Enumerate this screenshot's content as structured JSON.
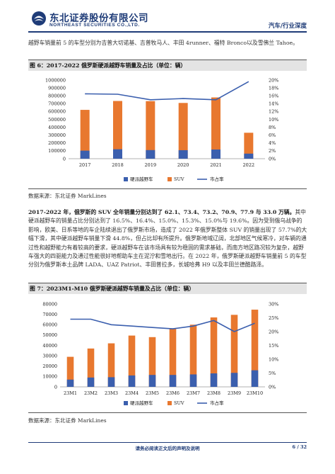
{
  "header": {
    "brand_cn": "东北证券股份有限公司",
    "brand_en": "NORTHEAST SECURITIES CO.,LTD.",
    "report_type": "汽车/行业深度",
    "logo_icon": "northeast-securities-logo-icon",
    "brand_color": "#1f3c78"
  },
  "intro": {
    "text": "越野车销量前 5 的车型分别为吉普大切诺基、吉普牧马人、丰田 4runner、福特 Bronco以及雪佛兰 Tahoe。"
  },
  "figure6": {
    "title": "图 6：2017-2022 俄罗斯硬派越野车销量及占比（单位：辆）",
    "source": "数据来源：东北证券 MarkLines"
  },
  "body": {
    "lead": "2017-2022 年，俄罗斯的 SUV 全年销量分别达到了 62.1、73.4、73.2、70.9、77.9 与 33.0 万辆。",
    "text": "其中硬派越野车的销量占比分别达到了 16.5%、16.4%、15.0%、15.3%、15.0%与 19.6%。因为受到俄乌战争的影响，欧美、日系等地的车企陆续退出了俄罗斯市场，造成了 2022 年俄罗斯整体 SUV 的销量出现了 57.7%的大幅下滑，其中硬派越野车销量下滑 44.8%，但占比却有所提升。俄罗斯地域辽阔，北部地区气候寒冷，对车辆的通过性和越野能力有着较高的要求，硬派越野车在该市场具有较为稳固的需求基础，而南方地区路况较为复杂，越野车强大的四驱能力及通过性能很好地帮助车主在泥泞和雪地出行。在 2022 年，俄罗斯硬派越野车销量前 5 的车型分别为俄罗斯本土品牌 LADA、UAZ Patriot、丰田普拉多，长城哈弗 H9 以及丰田兰德酷路泽。"
  },
  "figure7": {
    "title": "图 7：2023M1-M10 俄罗斯硬派越野车销量及占比（单位：辆）",
    "source": "数据来源：东北证券 MarkLines"
  },
  "colors": {
    "offroad": "#3b5fae",
    "suv": "#e8782f",
    "share": "#3b5fae"
  },
  "chart_data": [
    {
      "type": "bar",
      "categories": [
        "2017",
        "2018",
        "2019",
        "2020",
        "2021",
        "2022"
      ],
      "series": [
        {
          "name": "硬派越野车",
          "values": [
            102465,
            120376,
            109800,
            108477,
            116850,
            64680
          ]
        },
        {
          "name": "SUV",
          "values": [
            621000,
            734000,
            732000,
            709000,
            779000,
            330000
          ]
        },
        {
          "name": "市占率",
          "axis": "right",
          "values": [
            16.5,
            16.4,
            15.0,
            15.3,
            15.0,
            19.6
          ]
        }
      ],
      "ylim": [
        0,
        1000000
      ],
      "yticks": [
        "0",
        "100000",
        "200000",
        "300000",
        "400000",
        "500000",
        "600000",
        "700000",
        "800000",
        "900000",
        "1000000"
      ],
      "y2lim": [
        0,
        20
      ],
      "y2ticks": [
        "0%",
        "2%",
        "4%",
        "6%",
        "8%",
        "10%",
        "12%",
        "14%",
        "16%",
        "18%",
        "20%"
      ],
      "legend_position": "bottom",
      "stacked": true
    },
    {
      "type": "bar",
      "categories": [
        "23M1",
        "23M2",
        "23M3",
        "23M4",
        "23M5",
        "23M6",
        "23M7",
        "23M8",
        "23M9",
        "23M10"
      ],
      "series": [
        {
          "name": "硬派越野车",
          "values": [
            7000,
            9000,
            9300,
            11000,
            11500,
            11500,
            12000,
            13000,
            13500,
            16000
          ]
        },
        {
          "name": "SUV",
          "values": [
            29000,
            37000,
            42000,
            49500,
            48000,
            56500,
            60000,
            67000,
            69500,
            74500
          ]
        },
        {
          "name": "市占率",
          "axis": "right",
          "values": [
            24.5,
            24.5,
            22.5,
            22.0,
            21.5,
            21.0,
            22.0,
            24.0,
            20.0,
            23.0
          ]
        }
      ],
      "ylim": [
        0,
        80000
      ],
      "yticks": [
        "0",
        "10000",
        "20000",
        "30000",
        "40000",
        "50000",
        "60000",
        "70000",
        "80000"
      ],
      "y2lim": [
        0,
        30
      ],
      "y2ticks": [
        "0%",
        "5%",
        "10%",
        "15%",
        "20%",
        "25%",
        "30%"
      ],
      "legend_position": "bottom",
      "stacked": true
    }
  ],
  "footer": {
    "disclaimer": "请务必阅读正文后的声明及说明",
    "page": "6 / 32"
  }
}
